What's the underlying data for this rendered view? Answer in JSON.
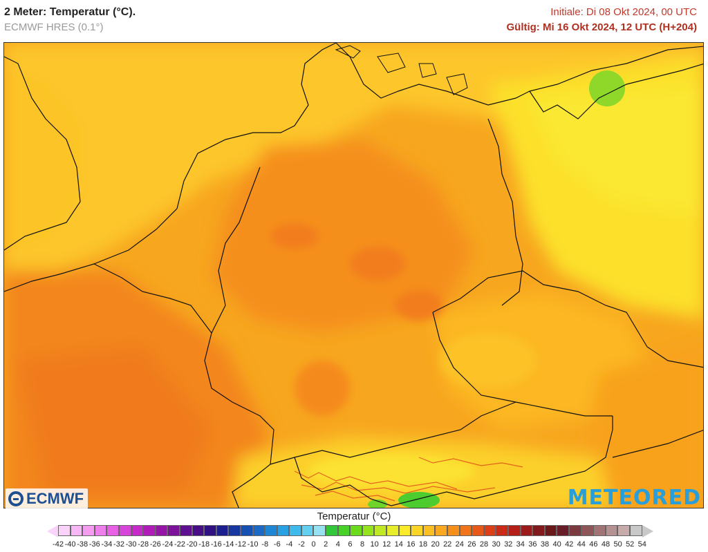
{
  "header": {
    "title": "2 Meter: Temperatur (°C).",
    "model": "ECMWF HRES (0.1°)",
    "init": "Initiale: Di 08 Okt 2024, 00 UTC",
    "valid": "Gültig: Mi 16 Okt 2024, 12 UTC (H+204)"
  },
  "logos": {
    "left": "ECMWF",
    "right": "METEORED"
  },
  "legend": {
    "title": "Temperatur (°C)",
    "ticks": [
      "-42",
      "-40",
      "-38",
      "-36",
      "-34",
      "-32",
      "-30",
      "-28",
      "-26",
      "-24",
      "-22",
      "-20",
      "-18",
      "-16",
      "-14",
      "-12",
      "-10",
      "-8",
      "-6",
      "-4",
      "-2",
      "0",
      "2",
      "4",
      "6",
      "8",
      "10",
      "12",
      "14",
      "16",
      "18",
      "20",
      "22",
      "24",
      "26",
      "28",
      "30",
      "32",
      "34",
      "36",
      "38",
      "40",
      "42",
      "44",
      "46",
      "48",
      "50",
      "52",
      "54"
    ],
    "colors": [
      "#fad3fa",
      "#f7b6f5",
      "#f49cf0",
      "#ef7feb",
      "#e761e4",
      "#d944d8",
      "#c62ac8",
      "#b01ab8",
      "#9415a6",
      "#7b139b",
      "#5e1090",
      "#470e88",
      "#2f1184",
      "#1c1f8f",
      "#1737a0",
      "#1750b3",
      "#1a6ac6",
      "#1f86d6",
      "#2aa1e3",
      "#3fbaec",
      "#62d0f0",
      "#96e2f2",
      "#33c83c",
      "#47d22a",
      "#6bdb1c",
      "#95e31a",
      "#bfe923",
      "#e6ee2c",
      "#fbea2a",
      "#fcd526",
      "#fcbf22",
      "#f9a81f",
      "#f58f1c",
      "#f0741a",
      "#e85918",
      "#dc3e17",
      "#c92b18",
      "#b51f1a",
      "#9c1c1c",
      "#82191c",
      "#6b181b",
      "#681e28",
      "#7a3a3f",
      "#8e5658",
      "#a27374",
      "#b69192",
      "#c7abab",
      "#c8c8c8"
    ]
  }
}
